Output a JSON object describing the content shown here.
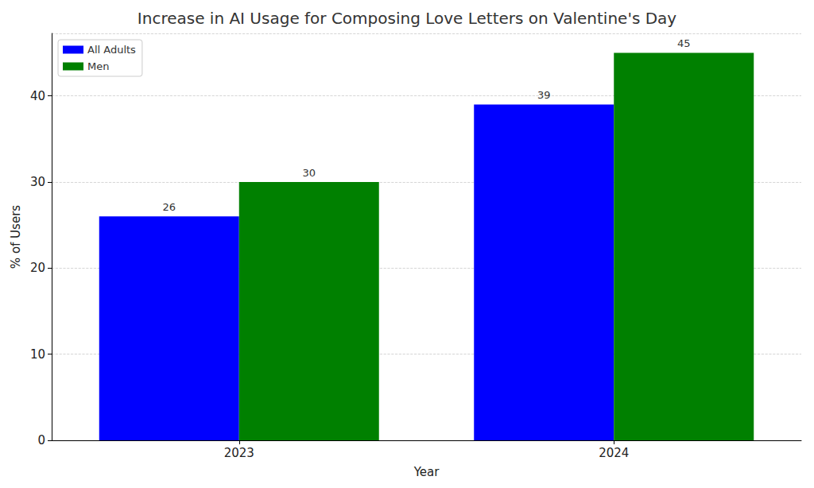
{
  "chart_data": {
    "type": "bar",
    "title": "Increase in AI Usage for Composing Love Letters on Valentine's Day",
    "x_label": "Year",
    "y_label": "% of Users",
    "categories": [
      "2023",
      "2024"
    ],
    "series": [
      {
        "name": "All Adults",
        "color": "#0000ff",
        "values": [
          26,
          39
        ]
      },
      {
        "name": "Men",
        "color": "#008000",
        "values": [
          30,
          45
        ]
      }
    ],
    "ylim": [
      0,
      47.25
    ],
    "yticks": [
      0,
      10,
      20,
      30,
      40
    ],
    "grid": true,
    "legend": "upper left",
    "data_labels": true
  }
}
